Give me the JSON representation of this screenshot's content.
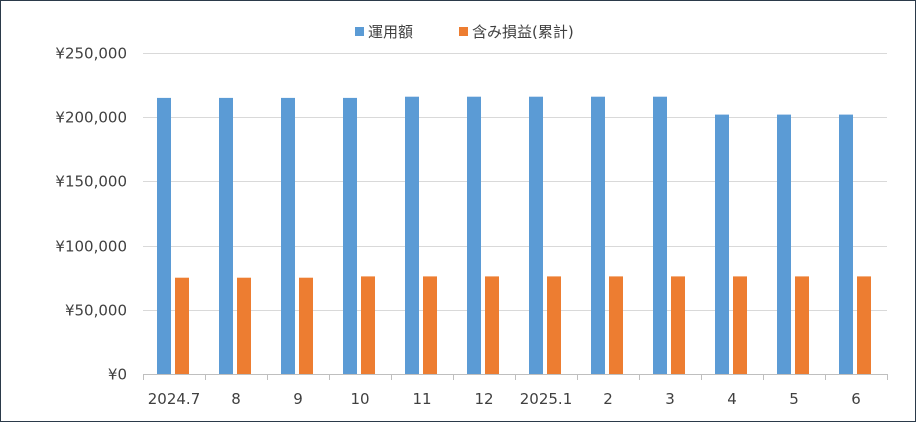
{
  "chart_data": {
    "type": "bar",
    "categories": [
      "2024.7",
      "8",
      "9",
      "10",
      "11",
      "12",
      "2025.1",
      "2",
      "3",
      "4",
      "5",
      "6"
    ],
    "series": [
      {
        "name": "運用額",
        "color": "#5b9bd5",
        "values": [
          215000,
          215000,
          215000,
          215000,
          216000,
          216000,
          216000,
          216000,
          216000,
          202000,
          202000,
          202000
        ]
      },
      {
        "name": "含み損益(累計)",
        "color": "#ed7d31",
        "values": [
          75000,
          75000,
          75000,
          76000,
          76000,
          76000,
          76000,
          76000,
          76000,
          76000,
          76000,
          76000
        ]
      }
    ],
    "yticks": [
      "¥0",
      "¥50,000",
      "¥100,000",
      "¥150,000",
      "¥200,000",
      "¥250,000"
    ],
    "ylim": [
      0,
      250000
    ],
    "grid": true,
    "legend_position": "top-center",
    "title": "",
    "xlabel": "",
    "ylabel": ""
  }
}
